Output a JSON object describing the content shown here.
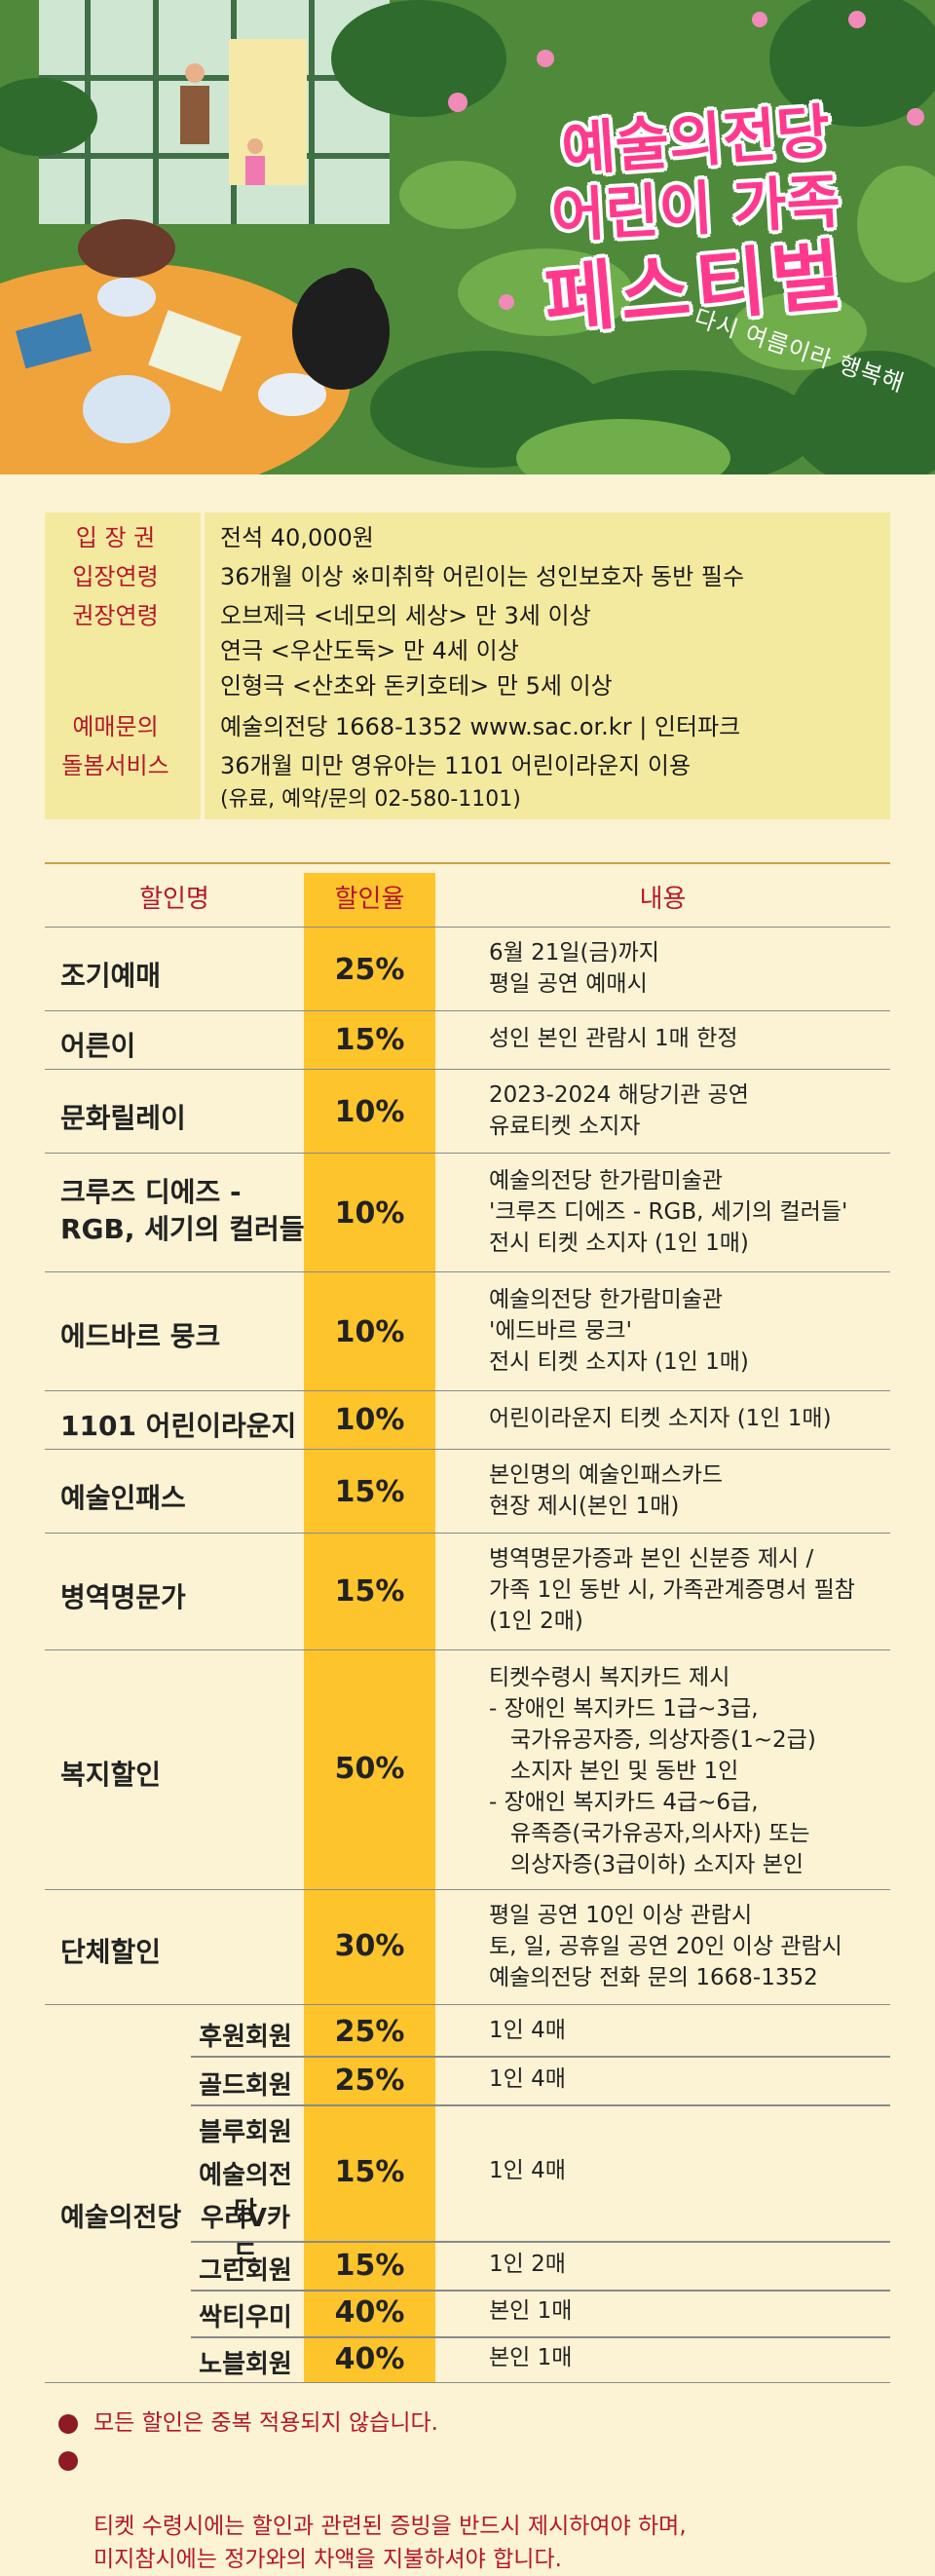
{
  "hero": {
    "title_line1": "예술의전당",
    "title_line2": "어린이 가족",
    "title_line3": "페스티벌",
    "subtitle": "다시 여름이라 행복해"
  },
  "info": [
    {
      "label": "입 장 권",
      "value": [
        "전석 40,000원"
      ]
    },
    {
      "label": "입장연령",
      "value": [
        "36개월 이상 ※미취학 어린이는 성인보호자 동반 필수"
      ]
    },
    {
      "label": "권장연령",
      "value": [
        "오브제극 <네모의 세상> 만 3세 이상",
        "연극 <우산도둑> 만 4세 이상",
        "인형극 <산초와 돈키호테> 만 5세 이상"
      ]
    },
    {
      "label": "예매문의",
      "value": [
        "예술의전당 1668-1352 www.sac.or.kr | 인터파크"
      ]
    },
    {
      "label": "돌봄서비스",
      "value": [
        "36개월 미만 영유아는 1101 어린이라운지 이용",
        "(유료, 예약/문의 02-580-1101)"
      ]
    }
  ],
  "table": {
    "headers": [
      "할인명",
      "할인율",
      "내용"
    ],
    "rows": [
      {
        "name": [
          "조기예매"
        ],
        "rate": "25%",
        "desc": "6월 21일(금)까지\n평일 공연 예매시"
      },
      {
        "name": [
          "어른이"
        ],
        "rate": "15%",
        "desc": "성인 본인 관람시 1매 한정"
      },
      {
        "name": [
          "문화릴레이"
        ],
        "rate": "10%",
        "desc": "2023-2024 해당기관 공연\n유료티켓 소지자"
      },
      {
        "name": [
          "크루즈 디에즈 -",
          "RGB, 세기의 컬러들"
        ],
        "rate": "10%",
        "desc": "예술의전당 한가람미술관\n'크루즈 디에즈 - RGB, 세기의 컬러들'\n전시 티켓 소지자 (1인 1매)"
      },
      {
        "name": [
          "에드바르 뭉크"
        ],
        "rate": "10%",
        "desc": "예술의전당 한가람미술관\n'에드바르 뭉크'\n전시 티켓 소지자 (1인 1매)"
      },
      {
        "name": [
          "1101 어린이라운지"
        ],
        "rate": "10%",
        "desc": "어린이라운지 티켓 소지자 (1인 1매)"
      },
      {
        "name": [
          "예술인패스"
        ],
        "rate": "15%",
        "desc": "본인명의 예술인패스카드\n현장 제시(본인 1매)"
      },
      {
        "name": [
          "병역명문가"
        ],
        "rate": "15%",
        "desc": "병역명문가증과 본인 신분증 제시 /\n가족 1인 동반 시, 가족관계증명서 필참\n(1인 2매)"
      },
      {
        "name": [
          "복지할인"
        ],
        "rate": "50%",
        "desc": "티켓수령시 복지카드 제시\n- 장애인 복지카드 1급~3급,\n   국가유공자증, 의상자증(1~2급)\n   소지자 본인 및 동반 1인\n- 장애인 복지카드 4급~6급,\n   유족증(국가유공자,의사자) 또는\n   의상자증(3급이하) 소지자 본인"
      },
      {
        "name": [
          "단체할인"
        ],
        "rate": "30%",
        "desc": "평일 공연 10인 이상 관람시\n토, 일, 공휴일 공연 20인 이상 관람시\n예술의전당 전화 문의 1668-1352"
      }
    ],
    "member_group": "예술의전당",
    "members": [
      {
        "name": [
          "후원회원"
        ],
        "rate": "25%",
        "desc": "1인 4매"
      },
      {
        "name": [
          "골드회원"
        ],
        "rate": "25%",
        "desc": "1인 4매"
      },
      {
        "name": [
          "블루회원",
          "예술의전당",
          "우리V카드"
        ],
        "rate": "15%",
        "desc": "1인 4매"
      },
      {
        "name": [
          "그린회원"
        ],
        "rate": "15%",
        "desc": "1인 2매"
      },
      {
        "name": [
          "싹티우미"
        ],
        "rate": "40%",
        "desc": "본인 1매"
      },
      {
        "name": [
          "노블회원"
        ],
        "rate": "40%",
        "desc": "본인 1매"
      }
    ]
  },
  "notes": [
    "모든 할인은 중복 적용되지 않습니다.",
    "티켓 수령시에는 할인과 관련된 증빙을 반드시 제시하여야 하며,\n미지참시에는 정가와의 차액을 지불하셔야 합니다."
  ],
  "colors": {
    "accent": "#b5172a",
    "rate_column": "#fdc42c",
    "background": "#fbf3d4",
    "info_box": "#f4ea9f",
    "title_pink": "#ff3a8c"
  }
}
